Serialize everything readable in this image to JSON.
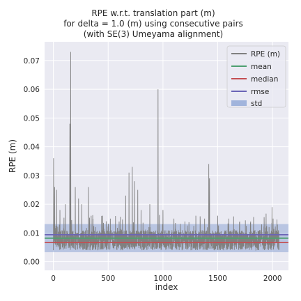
{
  "chart_data": {
    "type": "line",
    "title_lines": [
      "RPE w.r.t. translation part (m)",
      "for delta = 1.0 (m) using consecutive pairs",
      "(with SE(3) Umeyama alignment)"
    ],
    "xlabel": "index",
    "ylabel": "RPE (m)",
    "xlim": [
      -80,
      2145
    ],
    "ylim": [
      -0.003,
      0.0765
    ],
    "x_ticks": [
      0,
      500,
      1000,
      1500,
      2000
    ],
    "y_ticks": [
      0.0,
      0.01,
      0.02,
      0.03,
      0.04,
      0.05,
      0.06,
      0.07
    ],
    "y_tick_labels": [
      "0.00",
      "0.01",
      "0.02",
      "0.03",
      "0.04",
      "0.05",
      "0.06",
      "0.07"
    ],
    "grid": true,
    "background": "#eaeaf2",
    "legend_position": "top-right",
    "n_points": 2060,
    "series": [
      {
        "name": "RPE (m)",
        "color": "#808080",
        "baseline": 0.0075,
        "peaks": [
          [
            2,
            0.036
          ],
          [
            12,
            0.026
          ],
          [
            30,
            0.025
          ],
          [
            60,
            0.018
          ],
          [
            110,
            0.02
          ],
          [
            150,
            0.048
          ],
          [
            158,
            0.073
          ],
          [
            200,
            0.026
          ],
          [
            230,
            0.022
          ],
          [
            260,
            0.02
          ],
          [
            320,
            0.026
          ],
          [
            345,
            0.016
          ],
          [
            450,
            0.016
          ],
          [
            520,
            0.015
          ],
          [
            600,
            0.014
          ],
          [
            660,
            0.023
          ],
          [
            690,
            0.031
          ],
          [
            720,
            0.033
          ],
          [
            740,
            0.028
          ],
          [
            770,
            0.025
          ],
          [
            800,
            0.018
          ],
          [
            880,
            0.02
          ],
          [
            955,
            0.06
          ],
          [
            1000,
            0.018
          ],
          [
            1100,
            0.015
          ],
          [
            1200,
            0.014
          ],
          [
            1300,
            0.016
          ],
          [
            1380,
            0.015
          ],
          [
            1418,
            0.034
          ],
          [
            1425,
            0.029
          ],
          [
            1500,
            0.016
          ],
          [
            1600,
            0.015
          ],
          [
            1700,
            0.014
          ],
          [
            1800,
            0.014
          ],
          [
            1900,
            0.013
          ],
          [
            1995,
            0.019
          ],
          [
            2005,
            0.015
          ]
        ]
      },
      {
        "name": "mean",
        "color": "#4c9f70",
        "value": 0.0082
      },
      {
        "name": "median",
        "color": "#c44e52",
        "value": 0.0067
      },
      {
        "name": "rmse",
        "color": "#6a64b6",
        "value": 0.0094
      },
      {
        "name": "std",
        "color": "#8fa6d6",
        "value": 0.0049
      }
    ]
  }
}
